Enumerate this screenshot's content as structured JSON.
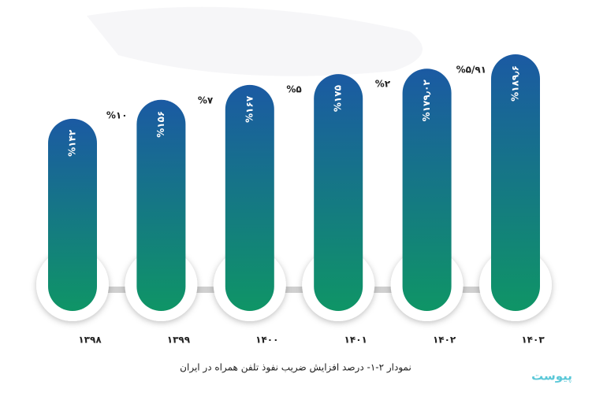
{
  "chart_data": {
    "type": "bar",
    "caption": "نمودار ۲-۱- درصد افزایش ضریب نفوذ تلفن همراه در ایران",
    "logo": "پیوست",
    "categories": [
      "۱۳۹۸",
      "۱۳۹۹",
      "۱۴۰۰",
      "۱۴۰۱",
      "۱۴۰۲",
      "۱۴۰۳"
    ],
    "values": [
      142,
      156,
      167,
      175,
      179.02,
      189.6
    ],
    "value_labels": [
      "%۱۴۲",
      "%۱۵۶",
      "%۱۶۷",
      "%۱۷۵",
      "%۱۷۹٫۰۲",
      "%۱۸۹٫۶"
    ],
    "growth": {
      "values": [
        10,
        7,
        5,
        2,
        5.91
      ],
      "value_labels": [
        "%۱۰",
        "%۷",
        "%۵",
        "%۲",
        "%۵/۹۱"
      ]
    },
    "colors": [
      "#1b5aa3",
      "#0f9566"
    ]
  }
}
